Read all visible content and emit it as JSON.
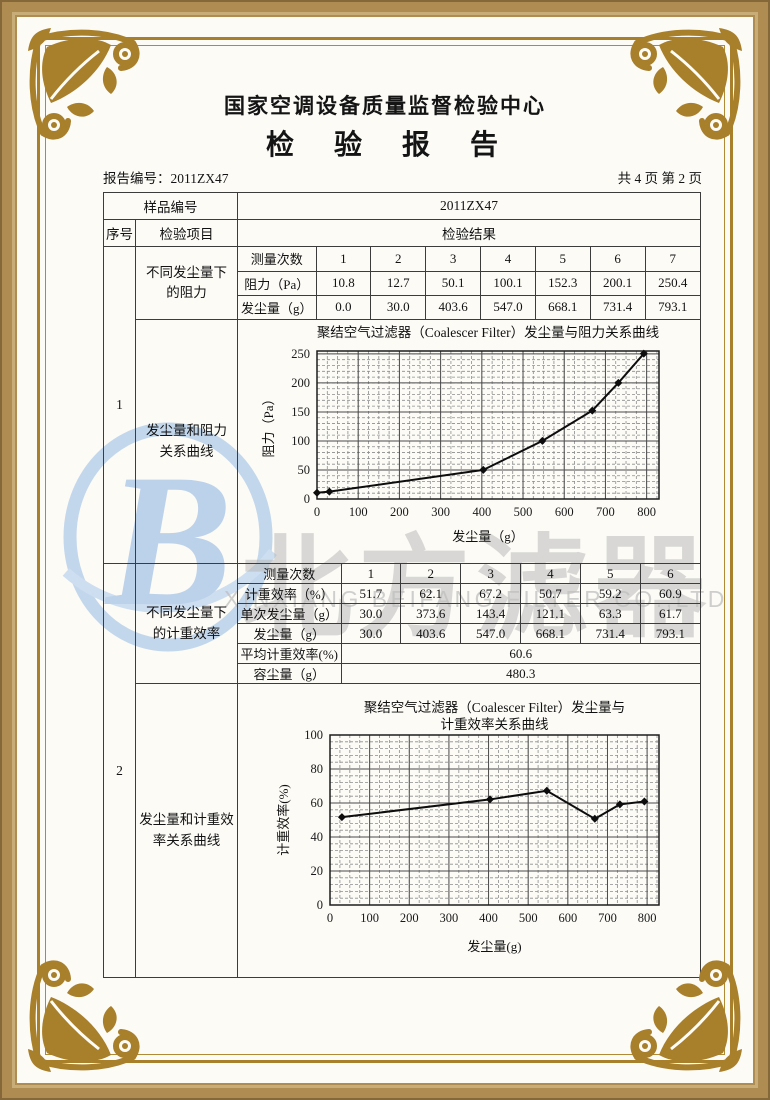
{
  "header": {
    "center_name": "国家空调设备质量监督检验中心",
    "report_title": "检　验　报　告",
    "report_no": "报告编号：2011ZX47",
    "page_info": "共 4 页 第 2 页"
  },
  "main_table": {
    "sample_label": "样品编号",
    "sample_value": "2011ZX47",
    "seq_header": "序号",
    "item_header": "检验项目",
    "result_header": "检验结果",
    "section1": {
      "seq": "1",
      "item_a": "不同发尘量下\n的阻力",
      "item_b": "发尘量和阻力\n关系曲线",
      "measure_label": "测量次数",
      "resistance_label": "阻力（Pa）",
      "dust_label": "发尘量（g）",
      "measure_nums": [
        "1",
        "2",
        "3",
        "4",
        "5",
        "6",
        "7"
      ],
      "resistance_values": [
        "10.8",
        "12.7",
        "50.1",
        "100.1",
        "152.3",
        "200.1",
        "250.4"
      ],
      "dust_values": [
        "0.0",
        "30.0",
        "403.6",
        "547.0",
        "668.1",
        "731.4",
        "793.1"
      ]
    },
    "section2": {
      "seq": "2",
      "item_a": "不同发尘量下\n的计重效率",
      "item_b": "发尘量和计重效\n率关系曲线",
      "measure_label": "测量次数",
      "eff_label": "计重效率（%）",
      "single_dust_label": "单次发尘量（g）",
      "dust_label": "发尘量（g）",
      "avg_eff_label": "平均计重效率(%)",
      "capacity_label": "容尘量（g）",
      "measure_nums": [
        "1",
        "2",
        "3",
        "4",
        "5",
        "6"
      ],
      "eff_values": [
        "51.7",
        "62.1",
        "67.2",
        "50.7",
        "59.2",
        "60.9"
      ],
      "single_dust_values": [
        "30.0",
        "373.6",
        "143.4",
        "121.1",
        "63.3",
        "61.7"
      ],
      "dust_values": [
        "30.0",
        "403.6",
        "547.0",
        "668.1",
        "731.4",
        "793.1"
      ],
      "avg_eff_value": "60.6",
      "capacity_value": "480.3"
    }
  },
  "watermark": {
    "logo_letter": "B",
    "cn_text": "北方滤器",
    "en_text": "XINXIANG BEIFANG FILTER CO.,LTD"
  },
  "colors": {
    "frame_gold": "#a87f2b",
    "band_tan": "#ae8c52",
    "watermark_blue": "#bcd2ea",
    "line_black": "#0d0d0d"
  },
  "chart_data": [
    {
      "type": "line",
      "name": "resistance-curve",
      "title_lines": [
        "聚结空气过滤器（Coalescer Filter）发尘量与阻力关系曲线"
      ],
      "xlabel": "发尘量（g）",
      "ylabel": "阻力（Pa）",
      "x": [
        0,
        30.0,
        403.6,
        547.0,
        668.1,
        731.4,
        793.1
      ],
      "y": [
        10.8,
        12.7,
        50.1,
        100.1,
        152.3,
        200.1,
        250.4
      ],
      "xlim": [
        0,
        830
      ],
      "ylim": [
        0,
        255
      ],
      "xticks": [
        0,
        100,
        200,
        300,
        400,
        500,
        600,
        700,
        800
      ],
      "yticks": [
        0,
        50,
        100,
        150,
        200,
        250
      ],
      "minor_x": 25,
      "minor_y": 10,
      "grid": true,
      "marker": "diamond",
      "legend": "none"
    },
    {
      "type": "line",
      "name": "efficiency-curve",
      "title_lines": [
        "聚结空气过滤器（Coalescer Filter）发尘量与",
        "计重效率关系曲线"
      ],
      "xlabel": "发尘量(g)",
      "ylabel": "计重效率(%)",
      "x": [
        30.0,
        403.6,
        547.0,
        668.1,
        731.4,
        793.1
      ],
      "y": [
        51.7,
        62.1,
        67.2,
        50.7,
        59.2,
        60.9
      ],
      "xlim": [
        0,
        830
      ],
      "ylim": [
        0,
        100
      ],
      "xticks": [
        0,
        100,
        200,
        300,
        400,
        500,
        600,
        700,
        800
      ],
      "yticks": [
        0,
        20,
        40,
        60,
        80,
        100
      ],
      "minor_x": 25,
      "minor_y": 4,
      "grid": true,
      "marker": "diamond",
      "legend": "none"
    }
  ]
}
